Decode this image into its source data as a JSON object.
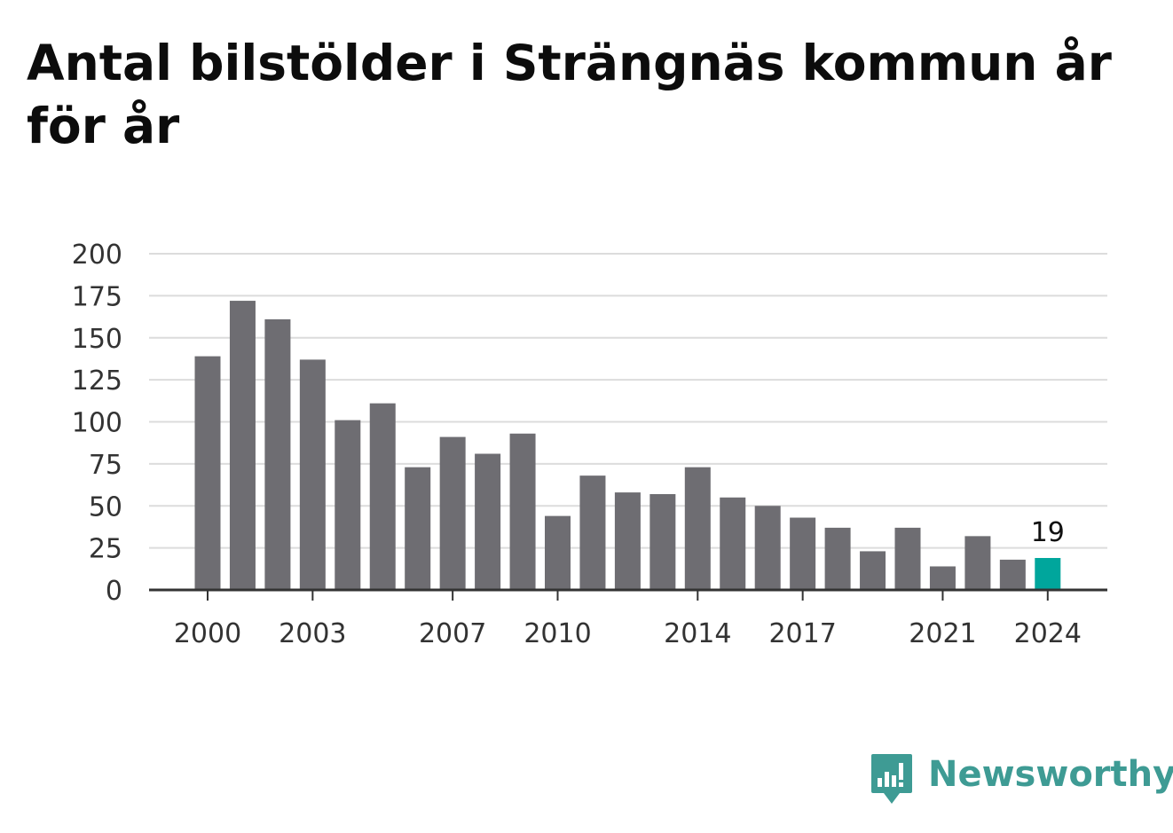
{
  "title": "Antal bilstölder i Strängnäs kommun år för år",
  "brand": {
    "name": "Newsworthy",
    "icon": "newsworthy-logo-icon",
    "color": "#3e9b94"
  },
  "chart_data": {
    "type": "bar",
    "title": "Antal bilstölder i Strängnäs kommun år för år",
    "xlabel": "",
    "ylabel": "",
    "categories": [
      "2000",
      "2001",
      "2002",
      "2003",
      "2004",
      "2005",
      "2006",
      "2007",
      "2008",
      "2009",
      "2010",
      "2011",
      "2012",
      "2013",
      "2014",
      "2015",
      "2016",
      "2017",
      "2018",
      "2019",
      "2020",
      "2021",
      "2022",
      "2023",
      "2024"
    ],
    "values": [
      139,
      172,
      161,
      137,
      101,
      111,
      73,
      91,
      81,
      93,
      44,
      68,
      58,
      57,
      73,
      55,
      50,
      43,
      37,
      23,
      37,
      14,
      32,
      18,
      19
    ],
    "ylim": [
      0,
      200
    ],
    "yticks": [
      0,
      25,
      50,
      75,
      100,
      125,
      150,
      175,
      200
    ],
    "xtick_labels": [
      "2000",
      "2003",
      "2007",
      "2010",
      "2014",
      "2017",
      "2021",
      "2024"
    ],
    "highlight": {
      "category": "2024",
      "label": "19"
    },
    "colors": {
      "bar": "#6e6d72",
      "highlight": "#00a69c",
      "grid": "#dcdcdc",
      "axis": "#333333"
    },
    "grid": true,
    "legend": "none"
  }
}
